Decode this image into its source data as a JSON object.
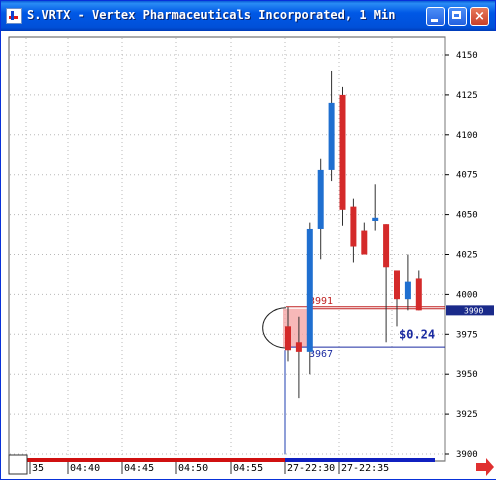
{
  "window": {
    "title": "S.VRTX - Vertex Pharmaceuticals Incorporated, 1 Min",
    "controls": {
      "minimize": "minimize",
      "maximize": "maximize",
      "close": "×"
    }
  },
  "colors": {
    "up_candle": "#1f6fd0",
    "down_candle": "#d42a2a",
    "grid": "#b8b8b8",
    "price_tag_bg": "#1a2a8a",
    "upper_line": "#c02020",
    "lower_line": "#1a2aa0",
    "session_bar_red": "#d01010",
    "session_bar_blue": "#1020c0",
    "scroll_arrow": "#e03030"
  },
  "chart_data": {
    "type": "candlestick",
    "title": "S.VRTX - Vertex Pharmaceuticals Incorporated, 1 Min",
    "ylim": [
      3900,
      4160
    ],
    "y_ticks": [
      3900,
      3925,
      3950,
      3975,
      4000,
      4025,
      4050,
      4075,
      4100,
      4125,
      4150
    ],
    "y_tick_labels": [
      "3900",
      "3925",
      "3950",
      "3975",
      "4000",
      "4025",
      "4050",
      "4075",
      "4100",
      "4125",
      "4150"
    ],
    "x_tick_labels": [
      "35",
      "04:40",
      "04:45",
      "04:50",
      "04:55",
      "27-22:30",
      "27-22:35"
    ],
    "current_price": 3990,
    "current_price_label": "3990",
    "pre_session_spike": {
      "low": 3900,
      "high": 3965
    },
    "candles": [
      {
        "o": 3980,
        "h": 3992,
        "l": 3958,
        "c": 3965
      },
      {
        "o": 3970,
        "h": 3986,
        "l": 3935,
        "c": 3964
      },
      {
        "o": 3964,
        "h": 4045,
        "l": 3950,
        "c": 4041
      },
      {
        "o": 4041,
        "h": 4085,
        "l": 4022,
        "c": 4078
      },
      {
        "o": 4078,
        "h": 4140,
        "l": 4071,
        "c": 4120
      },
      {
        "o": 4125,
        "h": 4130,
        "l": 4043,
        "c": 4053
      },
      {
        "o": 4055,
        "h": 4060,
        "l": 4020,
        "c": 4030
      },
      {
        "o": 4040,
        "h": 4045,
        "l": 4025,
        "c": 4025
      },
      {
        "o": 4046,
        "h": 4069,
        "l": 4040,
        "c": 4048
      },
      {
        "o": 4044,
        "h": 4044,
        "l": 3970,
        "c": 4017
      },
      {
        "o": 4015,
        "h": 4015,
        "l": 3980,
        "c": 3997
      },
      {
        "o": 3997,
        "h": 4025,
        "l": 3990,
        "c": 4008
      },
      {
        "o": 4010,
        "h": 4015,
        "l": 3990,
        "c": 3990
      }
    ],
    "measure": {
      "upper_value": 3991,
      "upper_label": "3991",
      "lower_value": 3967,
      "lower_label": "3967",
      "difference_label": "$0.24"
    }
  }
}
